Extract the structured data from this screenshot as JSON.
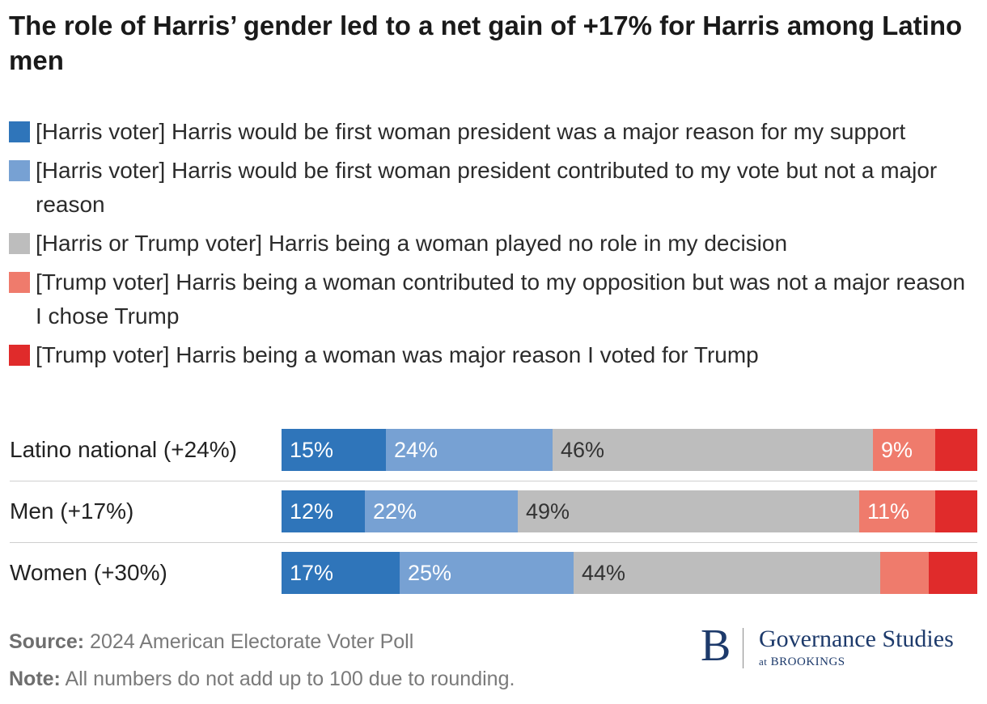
{
  "title": "The role of Harris’ gender led to a net gain of +17% for Harris among Latino men",
  "colors": {
    "harris_major": "#2f75ba",
    "harris_minor": "#77a1d3",
    "no_role": "#bdbdbd",
    "trump_minor": "#ef7b6c",
    "trump_major": "#e02b2b"
  },
  "chart_data": {
    "type": "bar",
    "orientation": "horizontal",
    "stacked": true,
    "categories": [
      "Latino national (+24%)",
      "Men (+17%)",
      "Women (+30%)"
    ],
    "series": [
      {
        "name": "[Harris voter] Harris would be first woman president was a major reason for my support",
        "color": "#2f75ba",
        "values": [
          15,
          12,
          17
        ],
        "labels": [
          "15%",
          "12%",
          "17%"
        ],
        "label_color": "#ffffff"
      },
      {
        "name": "[Harris voter] Harris would be first woman president contributed to my vote but not a major reason",
        "color": "#77a1d3",
        "values": [
          24,
          22,
          25
        ],
        "labels": [
          "24%",
          "22%",
          "25%"
        ],
        "label_color": "#ffffff"
      },
      {
        "name": "[Harris or Trump voter] Harris being a woman played no role in my decision",
        "color": "#bdbdbd",
        "values": [
          46,
          49,
          44
        ],
        "labels": [
          "46%",
          "49%",
          "44%"
        ],
        "label_color": "#333333"
      },
      {
        "name": "[Trump voter] Harris being a woman contributed to my opposition but was not a major reason I chose Trump",
        "color": "#ef7b6c",
        "values": [
          9,
          11,
          7
        ],
        "labels": [
          "9%",
          "11%",
          ""
        ],
        "label_color": "#ffffff"
      },
      {
        "name": "[Trump voter] Harris being a woman was major reason I voted for Trump",
        "color": "#e02b2b",
        "values": [
          6,
          6,
          7
        ],
        "labels": [
          "",
          "",
          ""
        ],
        "label_color": "#ffffff"
      }
    ],
    "xlim": [
      0,
      100
    ],
    "legend_position": "top"
  },
  "footer": {
    "source_label": "Source:",
    "source_text": " 2024 American Electorate Voter Poll",
    "note_label": "Note:",
    "note_text": " All numbers do not add up to 100 due to rounding."
  },
  "logo": {
    "mark": "B",
    "name": "Governance Studies",
    "sub_prefix": "at",
    "sub_org": "BROOKINGS"
  }
}
